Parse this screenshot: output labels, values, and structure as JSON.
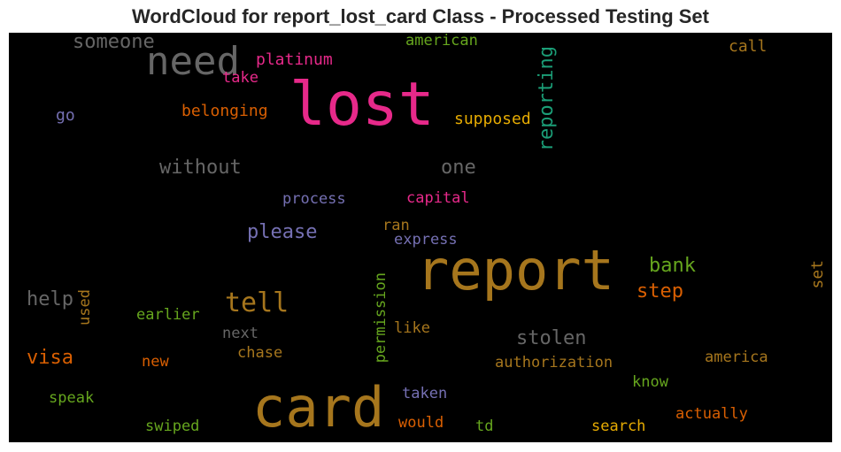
{
  "title": "WordCloud for report_lost_card Class - Processed Testing Set",
  "colors": {
    "background": "#000000",
    "magenta": "#e7298a",
    "gold": "#a6761d",
    "gray": "#666666",
    "orange": "#d95f02",
    "green": "#66a61e",
    "teal": "#1b9e77",
    "purple": "#7570b3",
    "yellow": "#e6ab02"
  },
  "words": {
    "someone": "someone",
    "need": "need",
    "platinum": "platinum",
    "american": "american",
    "call": "call",
    "take": "take",
    "lost": "lost",
    "reporting": "reporting",
    "go": "go",
    "belonging": "belonging",
    "supposed": "supposed",
    "without": "without",
    "one": "one",
    "process": "process",
    "capital": "capital",
    "please": "please",
    "ran": "ran",
    "express": "express",
    "report": "report",
    "bank": "bank",
    "set": "set",
    "help": "help",
    "used": "used",
    "tell": "tell",
    "permission": "permission",
    "step": "step",
    "earlier": "earlier",
    "next": "next",
    "like": "like",
    "stolen": "stolen",
    "visa": "visa",
    "new": "new",
    "chase": "chase",
    "authorization": "authorization",
    "america": "america",
    "speak": "speak",
    "card": "card",
    "taken": "taken",
    "know": "know",
    "actually": "actually",
    "swiped": "swiped",
    "would": "would",
    "td": "td",
    "search": "search"
  }
}
